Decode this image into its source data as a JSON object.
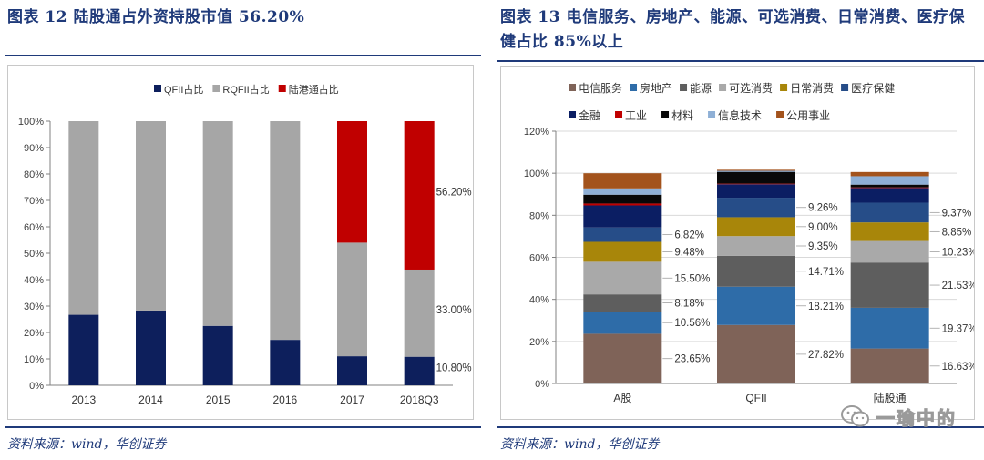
{
  "left": {
    "title": "图表 12 陆股通占外资持股市值 56.20%",
    "source": "资料来源：wind，华创证券"
  },
  "right": {
    "title": "图表 13 电信服务、房地产、能源、可选消费、日常消费、医疗保健占比 85%以上",
    "source": "资料来源：wind，华创证券"
  },
  "watermark": "一瑜中的",
  "chart_data": [
    {
      "type": "bar",
      "stacked": true,
      "categories": [
        "2013",
        "2014",
        "2015",
        "2016",
        "2017",
        "2018Q3"
      ],
      "series": [
        {
          "name": "QFII占比",
          "color": "#0d1f5c",
          "values": [
            26.7,
            28.3,
            22.5,
            17.2,
            11.0,
            10.8
          ]
        },
        {
          "name": "RQFII占比",
          "color": "#a6a6a6",
          "values": [
            73.3,
            71.7,
            77.5,
            82.8,
            43.0,
            33.0
          ]
        },
        {
          "name": "陆港通占比",
          "color": "#c00000",
          "values": [
            0,
            0,
            0,
            0,
            46.0,
            56.2
          ]
        }
      ],
      "data_labels": [
        {
          "category": "2018Q3",
          "series": "陆港通占比",
          "text": "56.20%"
        },
        {
          "category": "2018Q3",
          "series": "RQFII占比",
          "text": "33.00%"
        },
        {
          "category": "2018Q3",
          "series": "QFII占比",
          "text": "10.80%"
        }
      ],
      "y_ticks": [
        "0%",
        "10%",
        "20%",
        "30%",
        "40%",
        "50%",
        "60%",
        "70%",
        "80%",
        "90%",
        "100%"
      ],
      "ylim": [
        0,
        100
      ],
      "grid": false,
      "legend_position": "top"
    },
    {
      "type": "bar",
      "stacked": true,
      "categories": [
        "A股",
        "QFII",
        "陆股通"
      ],
      "series": [
        {
          "name": "电信服务",
          "color": "#7f6358",
          "values": [
            23.65,
            27.82,
            16.63
          ]
        },
        {
          "name": "房地产",
          "color": "#2e6ca8",
          "values": [
            10.56,
            18.21,
            19.37
          ]
        },
        {
          "name": "能源",
          "color": "#5e5e5e",
          "values": [
            8.18,
            14.71,
            21.53
          ]
        },
        {
          "name": "可选消费",
          "color": "#a9a9a9",
          "values": [
            15.5,
            9.35,
            10.23
          ]
        },
        {
          "name": "日常消费",
          "color": "#a8860a",
          "values": [
            9.48,
            9.0,
            8.85
          ]
        },
        {
          "name": "医疗保健",
          "color": "#264d88",
          "values": [
            6.82,
            9.26,
            9.37
          ]
        },
        {
          "name": "金融",
          "color": "#0b1e63",
          "values": [
            10.5,
            6.4,
            7.0
          ]
        },
        {
          "name": "工业",
          "color": "#c00000",
          "values": [
            0.9,
            0.3,
            0.3
          ]
        },
        {
          "name": "材料",
          "color": "#080808",
          "values": [
            4.2,
            5.6,
            1.3
          ]
        },
        {
          "name": "信息技术",
          "color": "#8fb0d6",
          "values": [
            3.0,
            0.5,
            4.0
          ]
        },
        {
          "name": "公用事业",
          "color": "#a3531c",
          "values": [
            7.2,
            0.5,
            2.0
          ]
        }
      ],
      "data_labels": [
        {
          "category": "A股",
          "series": "电信服务",
          "text": "23.65%"
        },
        {
          "category": "A股",
          "series": "房地产",
          "text": "10.56%"
        },
        {
          "category": "A股",
          "series": "能源",
          "text": "8.18%"
        },
        {
          "category": "A股",
          "series": "可选消费",
          "text": "15.50%"
        },
        {
          "category": "A股",
          "series": "日常消费",
          "text": "9.48%"
        },
        {
          "category": "A股",
          "series": "医疗保健",
          "text": "6.82%"
        },
        {
          "category": "QFII",
          "series": "电信服务",
          "text": "27.82%"
        },
        {
          "category": "QFII",
          "series": "房地产",
          "text": "18.21%"
        },
        {
          "category": "QFII",
          "series": "能源",
          "text": "14.71%"
        },
        {
          "category": "QFII",
          "series": "可选消费",
          "text": "9.35%"
        },
        {
          "category": "QFII",
          "series": "日常消费",
          "text": "9.00%"
        },
        {
          "category": "QFII",
          "series": "医疗保健",
          "text": "9.26%"
        },
        {
          "category": "陆股通",
          "series": "电信服务",
          "text": "16.63%"
        },
        {
          "category": "陆股通",
          "series": "房地产",
          "text": "19.37%"
        },
        {
          "category": "陆股通",
          "series": "能源",
          "text": "21.53%"
        },
        {
          "category": "陆股通",
          "series": "可选消费",
          "text": "10.23%"
        },
        {
          "category": "陆股通",
          "series": "日常消费",
          "text": "8.85%"
        },
        {
          "category": "陆股通",
          "series": "医疗保健",
          "text": "9.37%"
        }
      ],
      "y_ticks": [
        "0%",
        "20%",
        "40%",
        "60%",
        "80%",
        "100%",
        "120%"
      ],
      "ylim": [
        0,
        120
      ],
      "grid": true,
      "legend_position": "top"
    }
  ]
}
